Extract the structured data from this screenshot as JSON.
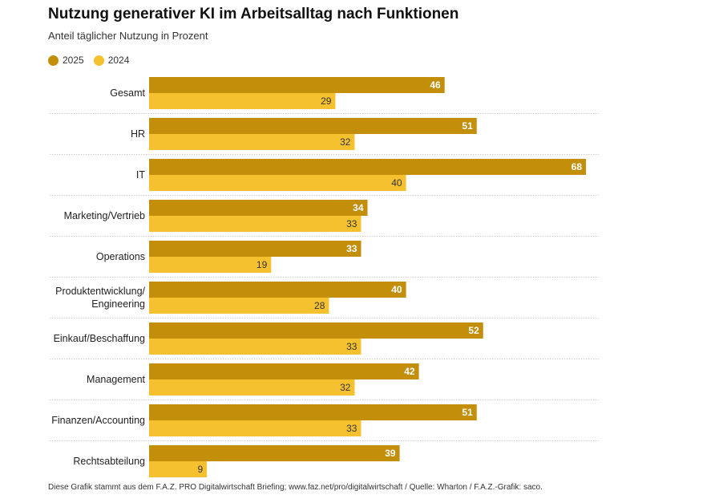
{
  "colors": {
    "series_2025": "#C38F0B",
    "series_2024": "#F6C12F",
    "separator": "#cfcfcf"
  },
  "footer": "Diese Grafik stammt aus dem F.A.Z. PRO Digitalwirtschaft Briefing; www.faz.net/pro/digitalwirtschaft  /  Quelle: Wharton  /  F.A.Z.-Grafik: saco.",
  "chart_data": {
    "type": "bar",
    "orientation": "horizontal",
    "title": "Nutzung generativer KI im Arbeitsalltag nach Funktionen",
    "subtitle": "Anteil täglicher Nutzung in Prozent",
    "xlabel": "",
    "ylabel": "",
    "xlim": [
      0,
      68
    ],
    "grid": false,
    "legend_position": "top-left",
    "categories": [
      [
        "Gesamt"
      ],
      [
        "HR"
      ],
      [
        "IT"
      ],
      [
        "Marketing/Vertrieb"
      ],
      [
        "Operations"
      ],
      [
        "Produktentwicklung/",
        "Engineering"
      ],
      [
        "Einkauf/Beschaffung"
      ],
      [
        "Management"
      ],
      [
        "Finanzen/Accounting"
      ],
      [
        "Rechtsabteilung"
      ]
    ],
    "series": [
      {
        "name": "2025",
        "values": [
          46,
          51,
          68,
          34,
          33,
          40,
          52,
          42,
          51,
          39
        ]
      },
      {
        "name": "2024",
        "values": [
          29,
          32,
          40,
          33,
          19,
          28,
          33,
          32,
          33,
          9
        ]
      }
    ]
  }
}
